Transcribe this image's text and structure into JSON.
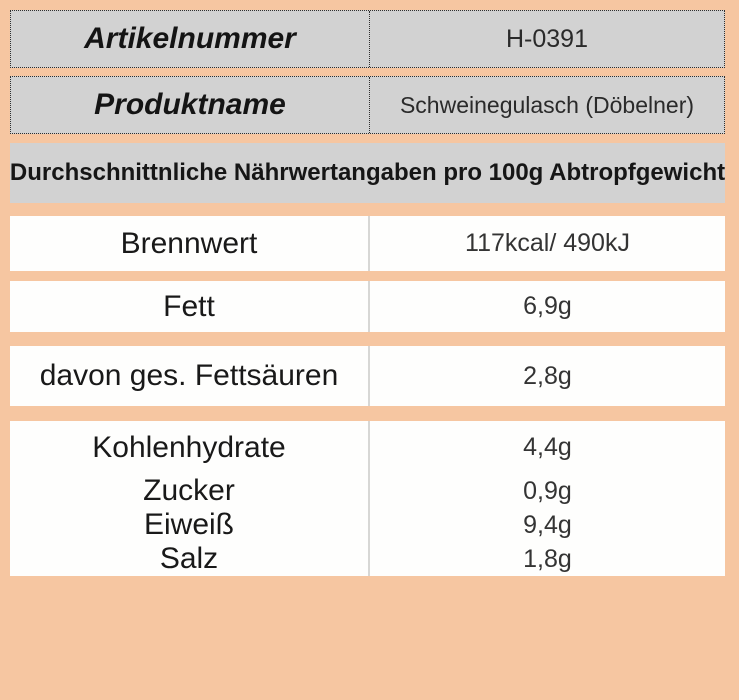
{
  "meta": {
    "artikelnummer_label": "Artikelnummer",
    "artikelnummer_value": "H-0391",
    "produktname_label": "Produktname",
    "produktname_value": "Schweinegulasch (Döbelner)"
  },
  "header": {
    "title": "Durchschnittnliche Nährwertangaben pro 100g Abtropfgewicht"
  },
  "nutrition": {
    "rows": [
      {
        "label": "Brennwert",
        "value": "117kcal/ 490kJ"
      },
      {
        "label": "Fett",
        "value": "6,9g"
      },
      {
        "label": "davon ges. Fettsäuren",
        "value": "2,8g"
      },
      {
        "label": "Kohlenhydrate",
        "value": "4,4g"
      },
      {
        "label": "Zucker",
        "value": "0,9g"
      },
      {
        "label": "Eiweiß",
        "value": "9,4g"
      },
      {
        "label": "Salz",
        "value": "1,8g"
      }
    ]
  },
  "colors": {
    "background_peach": "#f6c6a1",
    "cell_gray": "#d2d2d2",
    "cell_white": "#fefefd",
    "text_dark": "#161616",
    "divider_gray": "#d7d7d5"
  }
}
